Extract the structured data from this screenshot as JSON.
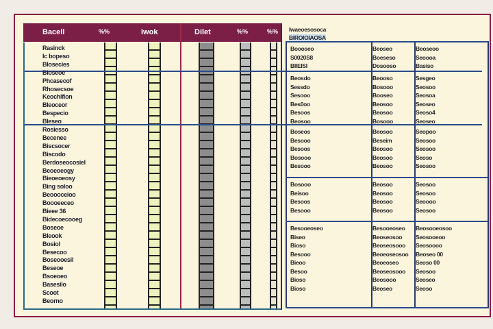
{
  "header": {
    "columns": [
      "Bacell",
      "%%",
      "Iwok",
      "Dilet",
      "%%",
      "%%"
    ]
  },
  "row_labels": [
    "Rasinck",
    "Ic bopeso",
    "Blosecies",
    "Bloseoe",
    "Phcasecof",
    "Rhosecsoe",
    "Keochifion",
    "Bleoceor",
    "Bespecio",
    "Bleseo",
    "Rosiesso",
    "Becenee",
    "Biscsocer",
    "Biscodo",
    "Berdoseocosiel",
    "Beoeoeogy",
    "Bieoeoeosy",
    "Bing soloo",
    "Beoooceioo",
    "Boooeeceo",
    "Bieee 36",
    "Bidecoecooeg",
    "Boseoe",
    "Bleook",
    "Bosiol",
    "Besecoo",
    "Boseooesil",
    "Beseoe",
    "Bsoeoeo",
    "Basesilo",
    "Scoot",
    "Beorno"
  ],
  "right_panel": {
    "title": "Iwaeoesosoca",
    "subtitle": "BIROIOIAOSA",
    "groups": [
      {
        "rows": [
          [
            "Boooseo",
            "Beoseo",
            "Beoseoo"
          ],
          [
            "S0020S8",
            "Boeseso",
            "Seoooa"
          ],
          [
            "BIIEISI",
            "Dosooso",
            "Basiso"
          ]
        ]
      },
      {
        "rows": [
          [
            "Beosdo",
            "Beooso",
            "Sesgeo"
          ],
          [
            "Sessdo",
            "Bosooo",
            "Seosoo"
          ],
          [
            "Sesooo",
            "Booseo",
            "Seosoa"
          ],
          [
            "Bes0oo",
            "Beosoo",
            "Seoseo"
          ],
          [
            "Besoos",
            "Beosoo",
            "Seoso4"
          ],
          [
            "Beosoo",
            "Bosooo",
            "Seoseo"
          ]
        ]
      },
      {
        "rows": [
          [
            "Boseos",
            "Beosoo",
            "Seopoo"
          ],
          [
            "Besooo",
            "Beseim",
            "Seosoo"
          ],
          [
            "Besoos",
            "Beosoo",
            "Seosoo"
          ],
          [
            "Bosooo",
            "Beosoo",
            "Seoso"
          ],
          [
            "Besooo",
            "Beosoo",
            "Seosoo"
          ]
        ]
      },
      {
        "rows": [
          [
            "Bosooo",
            "Beosoo",
            "Seosoo"
          ],
          [
            "Beisoo",
            "Beosoo",
            "Seosoo"
          ],
          [
            "Besoos",
            "Beosoo",
            "Seoooo"
          ],
          [
            "Besooo",
            "Beosoo",
            "Seosoo"
          ]
        ]
      },
      {
        "rows": [
          [
            "Besooeoseo",
            "Besooeoseo",
            "Beosooeosoo"
          ],
          [
            "Biseo",
            "Beoseosoo",
            "Seosooeoo"
          ],
          [
            "Bioso",
            "Beoseosooo",
            "Seosoooo"
          ],
          [
            "Besooo",
            "Beoeoseosoo",
            "Beoseo 00"
          ],
          [
            "Bieoo",
            "Beoeoseo",
            "Seoso 00"
          ],
          [
            "Besoo",
            "Beoseosooo",
            "Seosoo"
          ],
          [
            "Bioso",
            "Beosooo",
            "Seoseo"
          ],
          [
            "Bioso",
            "Beoseo",
            "Seoso"
          ]
        ]
      }
    ]
  },
  "colors": {
    "header": "#7b1f47",
    "paper": "#fbf5de",
    "grid": "#2b4a8a"
  }
}
